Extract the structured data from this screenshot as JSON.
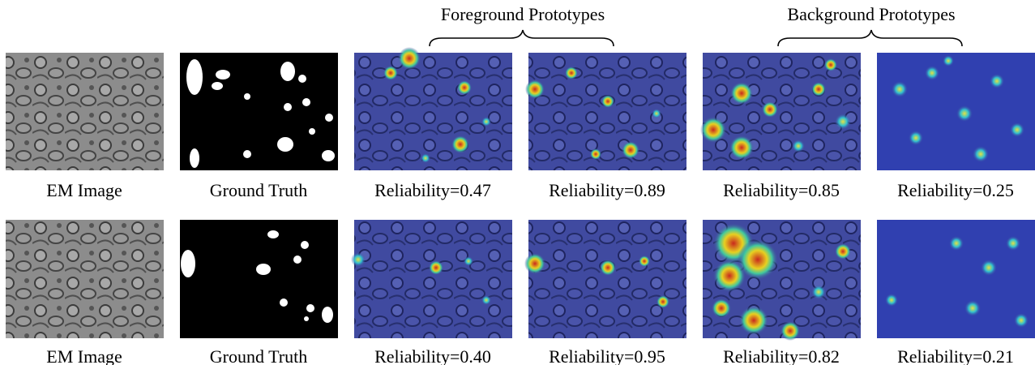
{
  "header": {
    "foreground": "Foreground Prototypes",
    "background": "Background Prototypes"
  },
  "rows": [
    {
      "captions": [
        "EM Image",
        "Ground Truth",
        "Reliability=0.47",
        "Reliability=0.89",
        "Reliability=0.85",
        "Reliability=0.25"
      ]
    },
    {
      "captions": [
        "EM Image",
        "Ground Truth",
        "Reliability=0.40",
        "Reliability=0.95",
        "Reliability=0.82",
        "Reliability=0.21"
      ]
    }
  ]
}
